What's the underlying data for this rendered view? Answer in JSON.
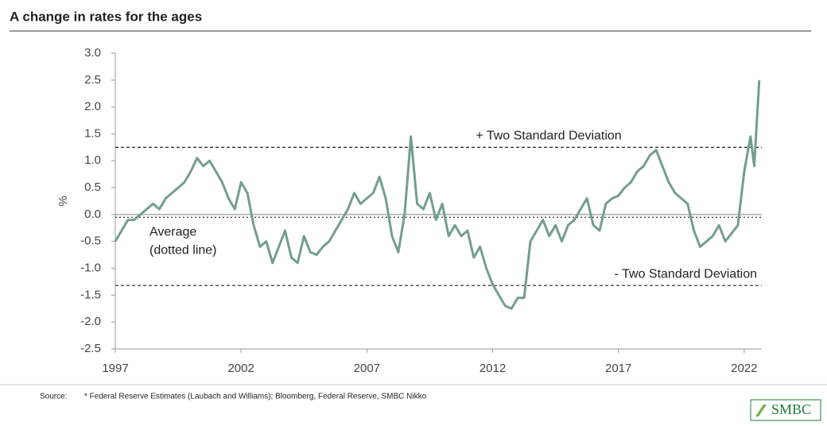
{
  "chart_data": {
    "type": "line",
    "title": "A change in rates for the ages",
    "y_label": "%",
    "color": "#739e8e",
    "x": [
      1997.0,
      1997.25,
      1997.5,
      1997.75,
      1998.0,
      1998.25,
      1998.5,
      1998.75,
      1999.0,
      1999.25,
      1999.5,
      1999.75,
      2000.0,
      2000.25,
      2000.5,
      2000.75,
      2001.0,
      2001.25,
      2001.5,
      2001.75,
      2002.0,
      2002.25,
      2002.5,
      2002.75,
      2003.0,
      2003.25,
      2003.5,
      2003.75,
      2004.0,
      2004.25,
      2004.5,
      2004.75,
      2005.0,
      2005.25,
      2005.5,
      2005.75,
      2006.0,
      2006.25,
      2006.5,
      2006.75,
      2007.0,
      2007.25,
      2007.5,
      2007.75,
      2008.0,
      2008.25,
      2008.5,
      2008.75,
      2009.0,
      2009.25,
      2009.5,
      2009.75,
      2010.0,
      2010.25,
      2010.5,
      2010.75,
      2011.0,
      2011.25,
      2011.5,
      2011.75,
      2012.0,
      2012.25,
      2012.5,
      2012.75,
      2013.0,
      2013.25,
      2013.5,
      2013.75,
      2014.0,
      2014.25,
      2014.5,
      2014.75,
      2015.0,
      2015.25,
      2015.5,
      2015.75,
      2016.0,
      2016.25,
      2016.5,
      2016.75,
      2017.0,
      2017.25,
      2017.5,
      2017.75,
      2018.0,
      2018.25,
      2018.5,
      2018.75,
      2019.0,
      2019.25,
      2019.5,
      2019.75,
      2020.0,
      2020.25,
      2020.5,
      2020.75,
      2021.0,
      2021.25,
      2021.5,
      2021.75,
      2022.0,
      2022.25,
      2022.4,
      2022.6
    ],
    "values": [
      -0.5,
      -0.3,
      -0.1,
      -0.1,
      0.0,
      0.1,
      0.2,
      0.1,
      0.3,
      0.4,
      0.5,
      0.6,
      0.8,
      1.05,
      0.9,
      1.0,
      0.8,
      0.6,
      0.3,
      0.1,
      0.6,
      0.4,
      -0.2,
      -0.6,
      -0.5,
      -0.9,
      -0.6,
      -0.3,
      -0.8,
      -0.9,
      -0.4,
      -0.7,
      -0.75,
      -0.6,
      -0.5,
      -0.3,
      -0.1,
      0.1,
      0.4,
      0.2,
      0.3,
      0.4,
      0.7,
      0.3,
      -0.4,
      -0.7,
      0.0,
      1.45,
      0.2,
      0.1,
      0.4,
      -0.1,
      0.2,
      -0.4,
      -0.2,
      -0.4,
      -0.3,
      -0.8,
      -0.6,
      -1.0,
      -1.3,
      -1.5,
      -1.7,
      -1.75,
      -1.55,
      -1.55,
      -0.5,
      -0.3,
      -0.1,
      -0.4,
      -0.2,
      -0.5,
      -0.2,
      -0.1,
      0.1,
      0.3,
      -0.2,
      -0.3,
      0.2,
      0.3,
      0.35,
      0.5,
      0.6,
      0.8,
      0.9,
      1.1,
      1.2,
      0.9,
      0.6,
      0.4,
      0.3,
      0.2,
      -0.3,
      -0.6,
      -0.5,
      -0.4,
      -0.2,
      -0.5,
      -0.35,
      -0.2,
      0.8,
      1.45,
      0.9,
      2.5
    ],
    "xlim": [
      1997,
      2022.7
    ],
    "xticks": [
      1997,
      2002,
      2007,
      2012,
      2017,
      2022
    ],
    "ylim": [
      -2.5,
      3.0
    ],
    "yticks": [
      -2.5,
      {
        "value": -2.0,
        "label": "-2.0"
      },
      -1.5,
      {
        "value": -1.0,
        "label": "-1.0"
      },
      -0.5,
      {
        "value": 0,
        "label": "0.0"
      },
      0.5,
      {
        "value": 1.0,
        "label": "1.0"
      },
      1.5,
      {
        "value": 2.0,
        "label": "2.0"
      },
      2.5,
      {
        "value": 3.0,
        "label": "3.0"
      }
    ],
    "reference_lines": [
      {
        "label": "+ Two Standard Deviation",
        "value": 1.25,
        "style": "dashed"
      },
      {
        "label": "- Two Standard Deviation",
        "value": -1.32,
        "style": "dashed"
      },
      {
        "label_lines": [
          "Average",
          "(dotted line)"
        ],
        "value": -0.05,
        "style": "dotted"
      }
    ],
    "source_label": "Source:",
    "source": "* Federal Reserve Estimates (Laubach and Williams); Bloomberg, Federal Reserve, SMBC Nikko",
    "logo": "SMBC"
  }
}
